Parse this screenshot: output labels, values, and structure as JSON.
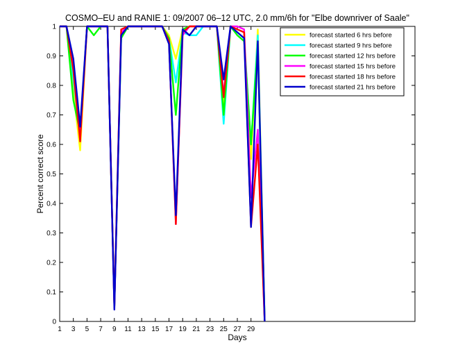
{
  "chart_data": {
    "type": "line",
    "title": "COSMO–EU and RANIE 1: 09/2007 06–12 UTC, 2.0 mm/6h for \"Elbe downriver of Saale\"",
    "xlabel": "Days",
    "ylabel": "Percent correct score",
    "xlim": [
      1,
      53
    ],
    "ylim": [
      0,
      1
    ],
    "xticks": [
      1,
      3,
      5,
      7,
      9,
      11,
      13,
      15,
      17,
      19,
      21,
      23,
      25,
      27,
      29
    ],
    "yticks": [
      0,
      0.1,
      0.2,
      0.3,
      0.4,
      0.5,
      0.6,
      0.7,
      0.8,
      0.9,
      1
    ],
    "grid": false,
    "legend_position": "top-right",
    "x": [
      1,
      2,
      3,
      4,
      5,
      6,
      7,
      8,
      9,
      10,
      11,
      12,
      13,
      14,
      15,
      16,
      17,
      18,
      19,
      20,
      21,
      22,
      23,
      24,
      25,
      26,
      27,
      28,
      29,
      30,
      31
    ],
    "series": [
      {
        "name": "forecast started 6 hrs before",
        "color": "#ffff00",
        "values": [
          1,
          1,
          0.78,
          0.58,
          1,
          1,
          1,
          1,
          0.05,
          0.97,
          1,
          1,
          1,
          1,
          1,
          1,
          0.97,
          0.89,
          0.99,
          0.97,
          1,
          1,
          1,
          1,
          0.73,
          1,
          0.99,
          0.98,
          0.55,
          0.99,
          0
        ]
      },
      {
        "name": "forecast started 9 hrs before",
        "color": "#00ffff",
        "values": [
          1,
          1,
          0.82,
          0.63,
          1,
          1,
          1,
          1,
          0.05,
          0.97,
          1,
          1,
          1,
          1,
          1,
          1,
          0.96,
          0.81,
          0.98,
          0.97,
          0.97,
          1,
          1,
          1,
          0.67,
          1,
          0.98,
          0.96,
          0.6,
          0.97,
          0
        ]
      },
      {
        "name": "forecast started 12 hrs before",
        "color": "#00ff00",
        "values": [
          1,
          1,
          0.75,
          0.64,
          1,
          0.97,
          1,
          1,
          0.05,
          0.96,
          1,
          1,
          1,
          1,
          1,
          1,
          0.96,
          0.7,
          0.99,
          1,
          1,
          1,
          1,
          1,
          0.7,
          1,
          0.97,
          0.95,
          0.6,
          0.94,
          0
        ]
      },
      {
        "name": "forecast started 15 hrs before",
        "color": "#ff00ff",
        "values": [
          1,
          1,
          0.88,
          0.63,
          1,
          1,
          1,
          1,
          0.05,
          0.98,
          1,
          1,
          1,
          1,
          1,
          1,
          0.95,
          0.33,
          0.97,
          1,
          1,
          1,
          1,
          1,
          0.77,
          1,
          1,
          0.99,
          0.42,
          0.65,
          0
        ]
      },
      {
        "name": "forecast started 18 hrs before",
        "color": "#ff0000",
        "values": [
          1,
          1,
          0.85,
          0.61,
          1,
          1,
          1,
          1,
          0.05,
          0.99,
          1,
          1,
          1,
          1,
          1,
          1,
          0.95,
          0.33,
          0.98,
          1,
          1,
          1,
          1,
          1,
          0.76,
          1,
          0.99,
          0.98,
          0.32,
          0.6,
          0
        ]
      },
      {
        "name": "forecast started 21 hrs before",
        "color": "#0000cc",
        "values": [
          1,
          1,
          0.89,
          0.66,
          1,
          1,
          1,
          1,
          0.04,
          0.97,
          1,
          1,
          1,
          1,
          1,
          1,
          0.94,
          0.36,
          0.99,
          0.97,
          1,
          1,
          1,
          1,
          0.82,
          1,
          0.98,
          0.96,
          0.32,
          0.95,
          0
        ]
      }
    ]
  }
}
